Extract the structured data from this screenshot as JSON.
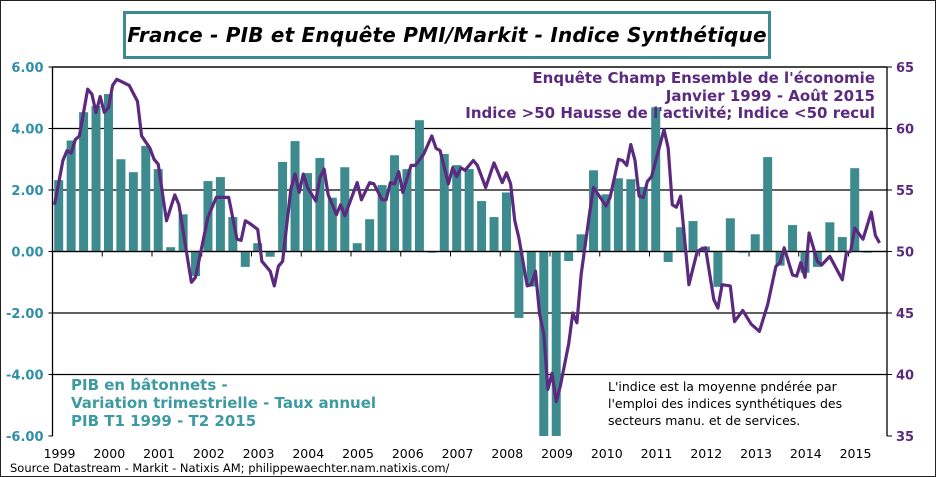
{
  "title": "France - PIB et Enquête PMI/Markit - Indice Synthétique",
  "annotations": {
    "pmi_lines": [
      "Enquête Champ Ensemble de l'économie",
      "Janvier 1999 - Août  2015",
      "Indice  >50 Hausse de l'activité;  Indice  <50 recul"
    ],
    "pib_lines": [
      "PIB en bâtonnets -",
      "Variation  trimestrielle  - Taux annuel",
      "PIB T1 1999 - T2 2015"
    ],
    "note_lines": [
      "L'indice  est la moyenne  pndérée  par",
      "l'emploi  des indices  synthétiques  des",
      "secteurs manu.  et de services."
    ]
  },
  "source": "Source Datastream - Markit - Natixis AM; philippewaechter.nam.natixis.com/",
  "colors": {
    "bars": "#3d8b8f",
    "line": "#5b2a7e",
    "left_axis_text": "#2f8fa8",
    "right_axis_text": "#5b2a7e"
  },
  "chart_data": {
    "type": "bar+line",
    "grid": true,
    "x_tick_labels": [
      "1999",
      "2000",
      "2001",
      "2002",
      "2003",
      "2004",
      "2005",
      "2006",
      "2007",
      "2008",
      "2009",
      "2010",
      "2011",
      "2012",
      "2013",
      "2014",
      "2015"
    ],
    "y_left": {
      "ylim": [
        -6,
        6
      ],
      "ticks": [
        "-6.00",
        "-4.00",
        "-2.00",
        "0.00",
        "2.00",
        "4.00",
        "6.00"
      ]
    },
    "y_right": {
      "ylim": [
        35,
        65
      ],
      "ticks": [
        "35",
        "40",
        "45",
        "50",
        "55",
        "60",
        "65"
      ]
    },
    "bars": {
      "axis": "left",
      "start": "1999-Q1",
      "frequency": "quarterly",
      "values": [
        2.32,
        3.61,
        4.53,
        4.73,
        5.12,
        3.0,
        2.58,
        3.43,
        2.68,
        0.14,
        1.21,
        -0.8,
        2.29,
        2.42,
        1.12,
        -0.5,
        0.27,
        -0.17,
        2.91,
        3.59,
        2.55,
        3.04,
        1.75,
        2.74,
        0.27,
        1.05,
        2.16,
        3.13,
        2.68,
        4.27,
        -0.04,
        3.17,
        2.81,
        2.68,
        1.64,
        1.12,
        1.92,
        -2.16,
        -1.14,
        -6.3,
        -6.5,
        -0.31,
        0.56,
        2.64,
        1.86,
        2.38,
        2.35,
        2.1,
        4.69,
        -0.34,
        0.79,
        0.99,
        0.16,
        -1.15,
        1.08,
        -0.04,
        0.56,
        3.07,
        -0.46,
        0.86,
        -0.69,
        -0.5,
        0.95,
        0.47,
        2.71,
        -0.04
      ]
    },
    "line": {
      "axis": "right",
      "frequency": "monthly",
      "points": [
        [
          "1999-01",
          53.8
        ],
        [
          "1999-03",
          57.4
        ],
        [
          "1999-04",
          58.2
        ],
        [
          "1999-05",
          58.0
        ],
        [
          "1999-06",
          59.1
        ],
        [
          "1999-07",
          59.4
        ],
        [
          "1999-09",
          63.2
        ],
        [
          "1999-10",
          62.8
        ],
        [
          "1999-11",
          61.3
        ],
        [
          "1999-12",
          62.6
        ],
        [
          "2000-01",
          61.3
        ],
        [
          "2000-02",
          61.7
        ],
        [
          "2000-03",
          63.5
        ],
        [
          "2000-04",
          64.0
        ],
        [
          "2000-07",
          63.5
        ],
        [
          "2000-09",
          62.2
        ],
        [
          "2000-10",
          59.4
        ],
        [
          "2000-12",
          58.4
        ],
        [
          "2001-01",
          57.5
        ],
        [
          "2001-02",
          57.1
        ],
        [
          "2001-04",
          52.5
        ],
        [
          "2001-06",
          54.6
        ],
        [
          "2001-07",
          53.8
        ],
        [
          "2001-10",
          47.5
        ],
        [
          "2001-11",
          47.9
        ],
        [
          "2002-02",
          52.8
        ],
        [
          "2002-04",
          54.4
        ],
        [
          "2002-07",
          54.4
        ],
        [
          "2002-09",
          51.0
        ],
        [
          "2002-10",
          50.9
        ],
        [
          "2002-11",
          52.5
        ],
        [
          "2002-12",
          52.3
        ],
        [
          "2003-02",
          51.8
        ],
        [
          "2003-03",
          49.2
        ],
        [
          "2003-05",
          48.4
        ],
        [
          "2003-06",
          47.2
        ],
        [
          "2003-07",
          48.8
        ],
        [
          "2003-08",
          49.2
        ],
        [
          "2003-10",
          55.1
        ],
        [
          "2003-11",
          56.3
        ],
        [
          "2003-12",
          54.8
        ],
        [
          "2004-01",
          56.3
        ],
        [
          "2004-02",
          55.2
        ],
        [
          "2004-04",
          54.1
        ],
        [
          "2004-05",
          56.0
        ],
        [
          "2004-06",
          56.7
        ],
        [
          "2004-07",
          54.6
        ],
        [
          "2004-09",
          53.0
        ],
        [
          "2004-10",
          53.8
        ],
        [
          "2004-11",
          52.9
        ],
        [
          "2005-02",
          55.6
        ],
        [
          "2005-03",
          54.2
        ],
        [
          "2005-05",
          55.6
        ],
        [
          "2005-06",
          55.5
        ],
        [
          "2005-08",
          54.2
        ],
        [
          "2005-09",
          54.2
        ],
        [
          "2005-10",
          55.6
        ],
        [
          "2005-11",
          55.5
        ],
        [
          "2005-12",
          56.5
        ],
        [
          "2006-01",
          54.8
        ],
        [
          "2006-03",
          57.0
        ],
        [
          "2006-04",
          57.0
        ],
        [
          "2006-06",
          57.9
        ],
        [
          "2006-08",
          59.4
        ],
        [
          "2006-09",
          58.4
        ],
        [
          "2006-10",
          58.2
        ],
        [
          "2006-12",
          55.5
        ],
        [
          "2007-01",
          56.8
        ],
        [
          "2007-02",
          56.1
        ],
        [
          "2007-03",
          56.8
        ],
        [
          "2007-04",
          56.6
        ],
        [
          "2007-06",
          57.4
        ],
        [
          "2007-07",
          57.0
        ],
        [
          "2007-09",
          55.2
        ],
        [
          "2007-11",
          57.2
        ],
        [
          "2008-01",
          55.6
        ],
        [
          "2008-02",
          56.4
        ],
        [
          "2008-03",
          55.5
        ],
        [
          "2008-04",
          52.5
        ],
        [
          "2008-05",
          51.1
        ],
        [
          "2008-07",
          47.2
        ],
        [
          "2008-08",
          47.3
        ],
        [
          "2008-09",
          48.4
        ],
        [
          "2008-10",
          44.9
        ],
        [
          "2008-11",
          43.3
        ],
        [
          "2008-12",
          38.8
        ],
        [
          "2009-01",
          40.1
        ],
        [
          "2009-02",
          37.8
        ],
        [
          "2009-03",
          39.1
        ],
        [
          "2009-05",
          42.5
        ],
        [
          "2009-06",
          45.0
        ],
        [
          "2009-07",
          44.2
        ],
        [
          "2009-08",
          48.1
        ],
        [
          "2009-10",
          53.0
        ],
        [
          "2009-11",
          55.2
        ],
        [
          "2010-02",
          53.7
        ],
        [
          "2010-03",
          54.4
        ],
        [
          "2010-05",
          57.5
        ],
        [
          "2010-06",
          57.4
        ],
        [
          "2010-07",
          57.0
        ],
        [
          "2010-08",
          58.7
        ],
        [
          "2010-09",
          57.4
        ],
        [
          "2010-10",
          54.5
        ],
        [
          "2010-11",
          54.4
        ],
        [
          "2010-12",
          55.7
        ],
        [
          "2011-01",
          56.1
        ],
        [
          "2011-04",
          59.9
        ],
        [
          "2011-05",
          58.4
        ],
        [
          "2011-06",
          53.8
        ],
        [
          "2011-07",
          53.6
        ],
        [
          "2011-08",
          54.5
        ],
        [
          "2011-10",
          47.3
        ],
        [
          "2011-12",
          50.0
        ],
        [
          "2012-01",
          50.2
        ],
        [
          "2012-02",
          50.3
        ],
        [
          "2012-04",
          46.1
        ],
        [
          "2012-05",
          45.4
        ],
        [
          "2012-06",
          47.3
        ],
        [
          "2012-08",
          47.2
        ],
        [
          "2012-09",
          44.3
        ],
        [
          "2012-11",
          45.2
        ],
        [
          "2013-01",
          44.1
        ],
        [
          "2013-03",
          43.5
        ],
        [
          "2013-05",
          45.7
        ],
        [
          "2013-07",
          48.8
        ],
        [
          "2013-08",
          49.1
        ],
        [
          "2013-09",
          50.3
        ],
        [
          "2013-11",
          48.1
        ],
        [
          "2013-12",
          48.0
        ],
        [
          "2014-01",
          49.1
        ],
        [
          "2014-02",
          47.9
        ],
        [
          "2014-03",
          51.5
        ],
        [
          "2014-05",
          49.2
        ],
        [
          "2014-06",
          48.9
        ],
        [
          "2014-08",
          49.6
        ],
        [
          "2014-11",
          47.7
        ],
        [
          "2014-12",
          49.9
        ],
        [
          "2015-01",
          50.0
        ],
        [
          "2015-02",
          51.9
        ],
        [
          "2015-04",
          51.0
        ],
        [
          "2015-06",
          53.2
        ],
        [
          "2015-07",
          51.3
        ],
        [
          "2015-08",
          50.7
        ]
      ]
    }
  }
}
